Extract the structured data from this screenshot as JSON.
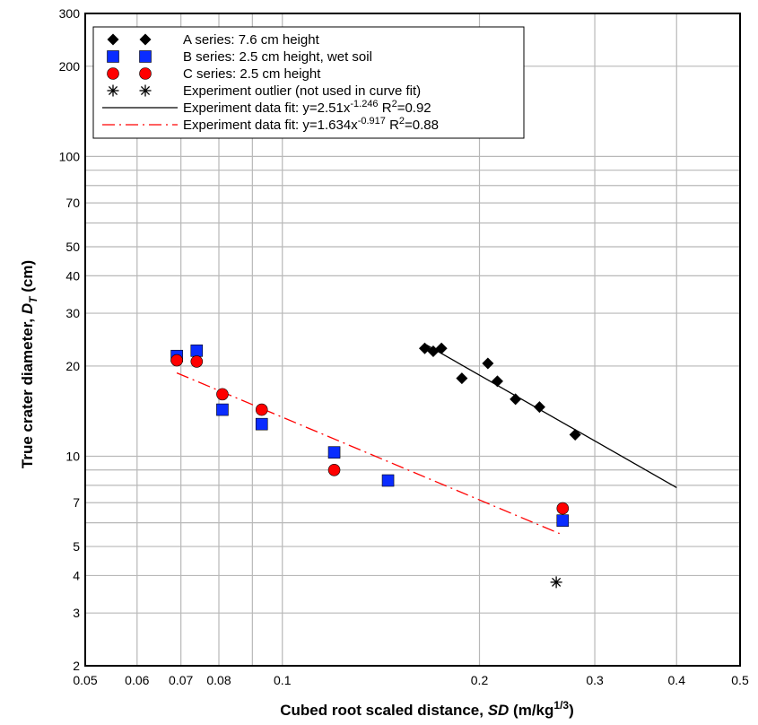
{
  "chart_data": {
    "type": "scatter",
    "x_scale": "log",
    "y_scale": "log",
    "xlim": [
      0.05,
      0.5
    ],
    "ylim": [
      2,
      300
    ],
    "grid": true,
    "legend_position": "top-left",
    "xlabel": {
      "prefix": "Cubed root scaled distance, ",
      "symbol": "SD",
      "unit_open": " (m/kg",
      "unit_exp": "1/3",
      "unit_close": ")"
    },
    "ylabel": {
      "prefix": "True crater diameter, ",
      "symbol": "D",
      "subscript": "T",
      "unit": " (cm)"
    },
    "x_ticks": [
      {
        "value": 0.05,
        "label": "0.05"
      },
      {
        "value": 0.06,
        "label": "0.06"
      },
      {
        "value": 0.07,
        "label": "0.07"
      },
      {
        "value": 0.08,
        "label": "0.08"
      },
      {
        "value": 0.1,
        "label": "0.1"
      },
      {
        "value": 0.2,
        "label": "0.2"
      },
      {
        "value": 0.3,
        "label": "0.3"
      },
      {
        "value": 0.4,
        "label": "0.4"
      },
      {
        "value": 0.5,
        "label": "0.5"
      }
    ],
    "y_ticks": [
      {
        "value": 2,
        "label": "2"
      },
      {
        "value": 3,
        "label": "3"
      },
      {
        "value": 4,
        "label": "4"
      },
      {
        "value": 5,
        "label": "5"
      },
      {
        "value": 7,
        "label": "7"
      },
      {
        "value": 10,
        "label": "10"
      },
      {
        "value": 20,
        "label": "20"
      },
      {
        "value": 30,
        "label": "30"
      },
      {
        "value": 40,
        "label": "40"
      },
      {
        "value": 50,
        "label": "50"
      },
      {
        "value": 70,
        "label": "70"
      },
      {
        "value": 100,
        "label": "100"
      },
      {
        "value": 200,
        "label": "200"
      },
      {
        "value": 300,
        "label": "300"
      }
    ],
    "x_grid": [
      0.06,
      0.07,
      0.08,
      0.09,
      0.1,
      0.2,
      0.3,
      0.4
    ],
    "y_grid": [
      3,
      4,
      5,
      6,
      7,
      8,
      9,
      10,
      20,
      30,
      40,
      50,
      60,
      70,
      80,
      90,
      100,
      200
    ],
    "series": [
      {
        "name": "A series: 7.6 cm height",
        "marker": "diamond",
        "color": "#000000",
        "points": [
          [
            0.165,
            22.9
          ],
          [
            0.17,
            22.4
          ],
          [
            0.175,
            22.9
          ],
          [
            0.188,
            18.2
          ],
          [
            0.206,
            20.4
          ],
          [
            0.213,
            17.8
          ],
          [
            0.227,
            15.5
          ],
          [
            0.247,
            14.6
          ],
          [
            0.28,
            11.8
          ]
        ]
      },
      {
        "name": "B series: 2.5 cm height, wet soil",
        "marker": "square",
        "color": "#0a2cff",
        "points": [
          [
            0.069,
            21.6
          ],
          [
            0.074,
            22.5
          ],
          [
            0.081,
            14.3
          ],
          [
            0.093,
            12.8
          ],
          [
            0.12,
            10.3
          ],
          [
            0.145,
            8.3
          ],
          [
            0.268,
            6.1
          ]
        ]
      },
      {
        "name": "C series: 2.5 cm height",
        "marker": "circle",
        "color": "#ff0000",
        "points": [
          [
            0.069,
            20.9
          ],
          [
            0.074,
            20.7
          ],
          [
            0.081,
            16.1
          ],
          [
            0.093,
            14.3
          ],
          [
            0.12,
            9.0
          ],
          [
            0.268,
            6.7
          ]
        ]
      },
      {
        "name": "Experiment outlier (not used in curve fit)",
        "marker": "asterisk",
        "color": "#000000",
        "points": [
          [
            0.262,
            3.8
          ]
        ]
      }
    ],
    "fits": [
      {
        "label_main": "Experiment data fit: y=2.51x",
        "label_exp": "-1.246",
        "label_r": " R",
        "label_r_exp": "2",
        "label_r_val": "=0.92",
        "style": "solid",
        "color": "#000000",
        "a": 2.51,
        "b": -1.246,
        "x_range": [
          0.165,
          0.4
        ]
      },
      {
        "label_main": "Experiment data fit: y=1.634x",
        "label_exp": "-0.917",
        "label_r": " R",
        "label_r_exp": "2",
        "label_r_val": "=0.88",
        "style": "dashdot",
        "color": "#ff0000",
        "a": 1.634,
        "b": -0.917,
        "x_range": [
          0.069,
          0.265
        ]
      }
    ]
  }
}
